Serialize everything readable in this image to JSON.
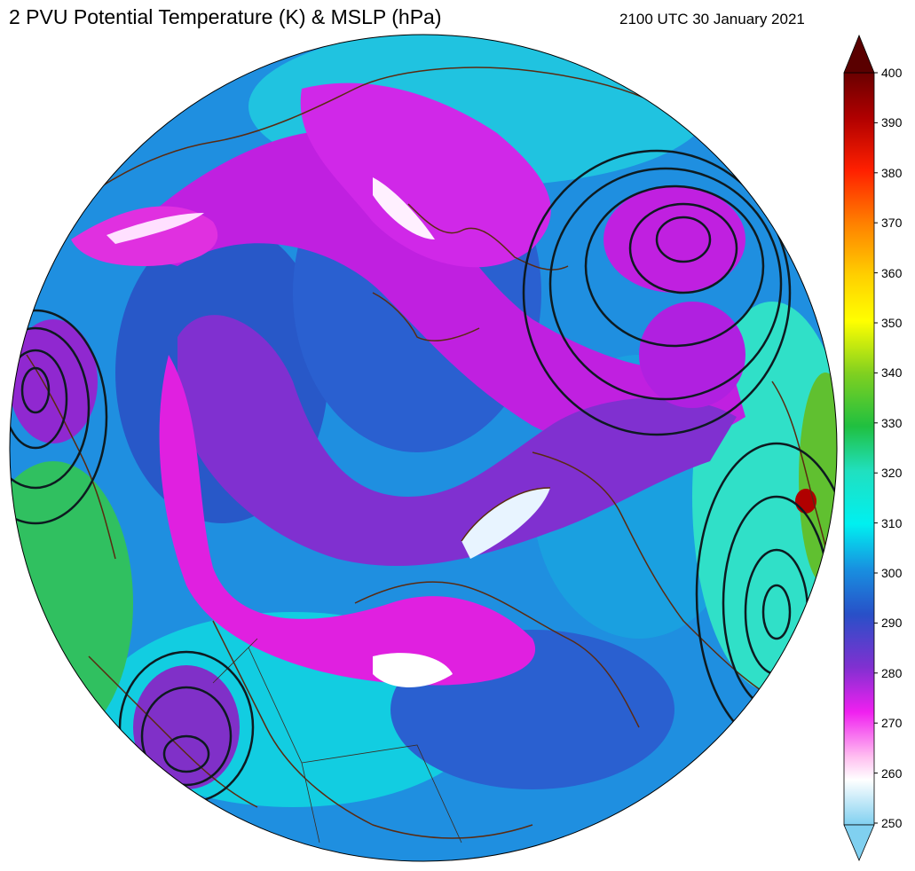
{
  "header": {
    "title": "2 PVU Potential Temperature (K) & MSLP (hPa)",
    "valid_time": "2100 UTC 30 January 2021"
  },
  "colorbar": {
    "min": 250,
    "max": 400,
    "ticks": [
      "400",
      "390",
      "380",
      "370",
      "360",
      "350",
      "340",
      "330",
      "320",
      "310",
      "300",
      "290",
      "280",
      "270",
      "260",
      "250"
    ],
    "colors": [
      "#5a0000",
      "#a00000",
      "#e00000",
      "#ff4000",
      "#ff9000",
      "#ffd000",
      "#ffff00",
      "#a0e000",
      "#30c030",
      "#20d8a0",
      "#00f0e0",
      "#1890e0",
      "#2850c8",
      "#7a30d0",
      "#e020e0",
      "#ffffff",
      "#80d0f0"
    ]
  },
  "map": {
    "projection": "orthographic north-polar",
    "fields": [
      "2 PVU potential temperature",
      "mean sea level pressure"
    ]
  }
}
